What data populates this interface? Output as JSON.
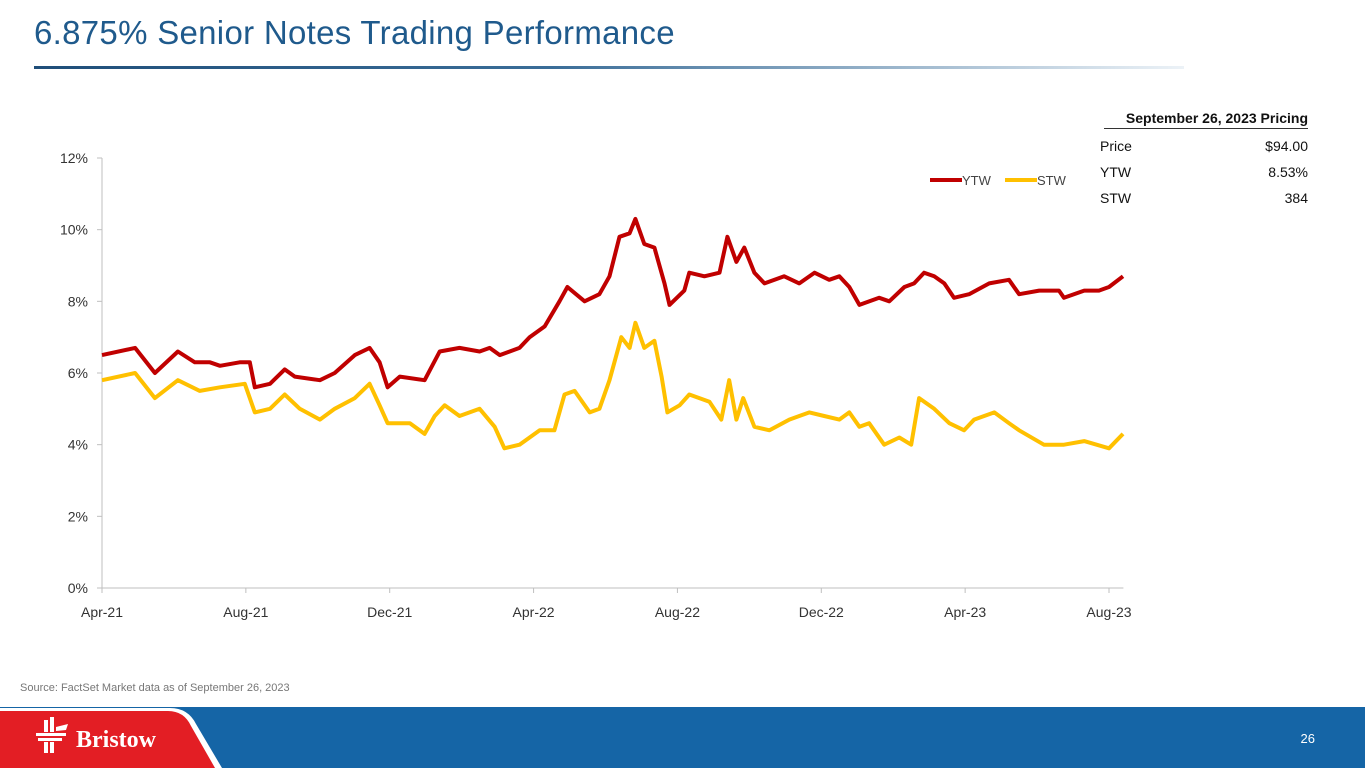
{
  "slide": {
    "title": "6.875% Senior Notes Trading Performance",
    "source": "Source: FactSet Market data as of September 26, 2023",
    "page_number": "26",
    "logo": "Bristow"
  },
  "pricing": {
    "header": "September 26, 2023 Pricing",
    "rows": [
      {
        "label": "Price",
        "value": "$94.00"
      },
      {
        "label": "YTW",
        "value": "8.53%"
      },
      {
        "label": "STW",
        "value": "384"
      }
    ]
  },
  "colors": {
    "ytw": "#c00000",
    "stw": "#ffc000",
    "title": "#1f5a8c",
    "footer": "#1565a6",
    "logo_bg": "#e31e24"
  },
  "chart_data": {
    "type": "line",
    "title": "",
    "xlabel": "",
    "ylabel": "",
    "x_unit": "months since Apr-21",
    "xlim": [
      0,
      28.4
    ],
    "ylim": [
      0,
      12
    ],
    "grid": false,
    "legend": "top-right",
    "x_ticks": [
      {
        "x": 0,
        "label": "Apr-21"
      },
      {
        "x": 4,
        "label": "Aug-21"
      },
      {
        "x": 8,
        "label": "Dec-21"
      },
      {
        "x": 12,
        "label": "Apr-22"
      },
      {
        "x": 16,
        "label": "Aug-22"
      },
      {
        "x": 20,
        "label": "Dec-22"
      },
      {
        "x": 24,
        "label": "Apr-23"
      },
      {
        "x": 28,
        "label": "Aug-23"
      }
    ],
    "y_ticks": [
      {
        "y": 0,
        "label": "0%"
      },
      {
        "y": 2,
        "label": "2%"
      },
      {
        "y": 4,
        "label": "4%"
      },
      {
        "y": 6,
        "label": "6%"
      },
      {
        "y": 8,
        "label": "8%"
      },
      {
        "y": 10,
        "label": "10%"
      },
      {
        "y": 12,
        "label": "12%"
      }
    ],
    "series": [
      {
        "name": "YTW",
        "color": "#c00000",
        "points": [
          [
            0,
            6.5
          ],
          [
            0.92,
            6.7
          ],
          [
            1.47,
            6.0
          ],
          [
            2.11,
            6.6
          ],
          [
            2.58,
            6.3
          ],
          [
            3.0,
            6.3
          ],
          [
            3.28,
            6.2
          ],
          [
            3.83,
            6.3
          ],
          [
            4.11,
            6.3
          ],
          [
            4.25,
            5.6
          ],
          [
            4.67,
            5.7
          ],
          [
            5.08,
            6.1
          ],
          [
            5.36,
            5.9
          ],
          [
            6.06,
            5.8
          ],
          [
            6.47,
            6.0
          ],
          [
            7.03,
            6.5
          ],
          [
            7.44,
            6.7
          ],
          [
            7.72,
            6.3
          ],
          [
            7.94,
            5.6
          ],
          [
            8.28,
            5.9
          ],
          [
            8.97,
            5.8
          ],
          [
            9.39,
            6.6
          ],
          [
            9.94,
            6.7
          ],
          [
            10.5,
            6.6
          ],
          [
            10.78,
            6.7
          ],
          [
            11.06,
            6.5
          ],
          [
            11.61,
            6.7
          ],
          [
            11.89,
            7.0
          ],
          [
            12.31,
            7.3
          ],
          [
            12.72,
            8.0
          ],
          [
            12.94,
            8.4
          ],
          [
            13.42,
            8.0
          ],
          [
            13.83,
            8.2
          ],
          [
            14.11,
            8.7
          ],
          [
            14.39,
            9.8
          ],
          [
            14.67,
            9.9
          ],
          [
            14.83,
            10.3
          ],
          [
            15.08,
            9.6
          ],
          [
            15.36,
            9.5
          ],
          [
            15.64,
            8.5
          ],
          [
            15.78,
            7.9
          ],
          [
            16.19,
            8.3
          ],
          [
            16.33,
            8.8
          ],
          [
            16.75,
            8.7
          ],
          [
            17.17,
            8.8
          ],
          [
            17.39,
            9.8
          ],
          [
            17.64,
            9.1
          ],
          [
            17.86,
            9.5
          ],
          [
            18.14,
            8.8
          ],
          [
            18.42,
            8.5
          ],
          [
            18.97,
            8.7
          ],
          [
            19.39,
            8.5
          ],
          [
            19.81,
            8.8
          ],
          [
            20.22,
            8.6
          ],
          [
            20.5,
            8.7
          ],
          [
            20.78,
            8.4
          ],
          [
            21.06,
            7.9
          ],
          [
            21.61,
            8.1
          ],
          [
            21.89,
            8.0
          ],
          [
            22.31,
            8.4
          ],
          [
            22.58,
            8.5
          ],
          [
            22.86,
            8.8
          ],
          [
            23.14,
            8.7
          ],
          [
            23.42,
            8.5
          ],
          [
            23.69,
            8.1
          ],
          [
            24.11,
            8.2
          ],
          [
            24.67,
            8.5
          ],
          [
            25.22,
            8.6
          ],
          [
            25.5,
            8.2
          ],
          [
            26.06,
            8.3
          ],
          [
            26.61,
            8.3
          ],
          [
            26.75,
            8.1
          ],
          [
            27.31,
            8.3
          ],
          [
            27.72,
            8.3
          ],
          [
            28.0,
            8.4
          ],
          [
            28.39,
            8.7
          ]
        ]
      },
      {
        "name": "STW",
        "color": "#ffc000",
        "points": [
          [
            0,
            5.8
          ],
          [
            0.92,
            6.0
          ],
          [
            1.47,
            5.3
          ],
          [
            2.11,
            5.8
          ],
          [
            2.72,
            5.5
          ],
          [
            3.28,
            5.6
          ],
          [
            3.97,
            5.7
          ],
          [
            4.25,
            4.9
          ],
          [
            4.67,
            5.0
          ],
          [
            5.08,
            5.4
          ],
          [
            5.5,
            5.0
          ],
          [
            6.06,
            4.7
          ],
          [
            6.47,
            5.0
          ],
          [
            7.03,
            5.3
          ],
          [
            7.44,
            5.7
          ],
          [
            7.72,
            5.1
          ],
          [
            7.94,
            4.6
          ],
          [
            8.56,
            4.6
          ],
          [
            8.97,
            4.3
          ],
          [
            9.25,
            4.8
          ],
          [
            9.53,
            5.1
          ],
          [
            9.94,
            4.8
          ],
          [
            10.5,
            5.0
          ],
          [
            10.92,
            4.5
          ],
          [
            11.19,
            3.9
          ],
          [
            11.61,
            4.0
          ],
          [
            12.17,
            4.4
          ],
          [
            12.58,
            4.4
          ],
          [
            12.86,
            5.4
          ],
          [
            13.14,
            5.5
          ],
          [
            13.56,
            4.9
          ],
          [
            13.83,
            5.0
          ],
          [
            14.11,
            5.8
          ],
          [
            14.44,
            7.0
          ],
          [
            14.67,
            6.7
          ],
          [
            14.83,
            7.4
          ],
          [
            15.08,
            6.7
          ],
          [
            15.36,
            6.9
          ],
          [
            15.56,
            5.9
          ],
          [
            15.72,
            4.9
          ],
          [
            16.06,
            5.1
          ],
          [
            16.33,
            5.4
          ],
          [
            16.89,
            5.2
          ],
          [
            17.22,
            4.7
          ],
          [
            17.44,
            5.8
          ],
          [
            17.64,
            4.7
          ],
          [
            17.83,
            5.3
          ],
          [
            18.14,
            4.5
          ],
          [
            18.56,
            4.4
          ],
          [
            19.11,
            4.7
          ],
          [
            19.39,
            4.8
          ],
          [
            19.67,
            4.9
          ],
          [
            20.08,
            4.8
          ],
          [
            20.5,
            4.7
          ],
          [
            20.78,
            4.9
          ],
          [
            21.06,
            4.5
          ],
          [
            21.33,
            4.6
          ],
          [
            21.75,
            4.0
          ],
          [
            22.17,
            4.2
          ],
          [
            22.5,
            4.0
          ],
          [
            22.72,
            5.3
          ],
          [
            23.14,
            5.0
          ],
          [
            23.56,
            4.6
          ],
          [
            23.97,
            4.4
          ],
          [
            24.25,
            4.7
          ],
          [
            24.81,
            4.9
          ],
          [
            25.22,
            4.6
          ],
          [
            25.5,
            4.4
          ],
          [
            26.19,
            4.0
          ],
          [
            26.75,
            4.0
          ],
          [
            27.31,
            4.1
          ],
          [
            28.0,
            3.9
          ],
          [
            28.39,
            4.3
          ]
        ]
      }
    ]
  }
}
